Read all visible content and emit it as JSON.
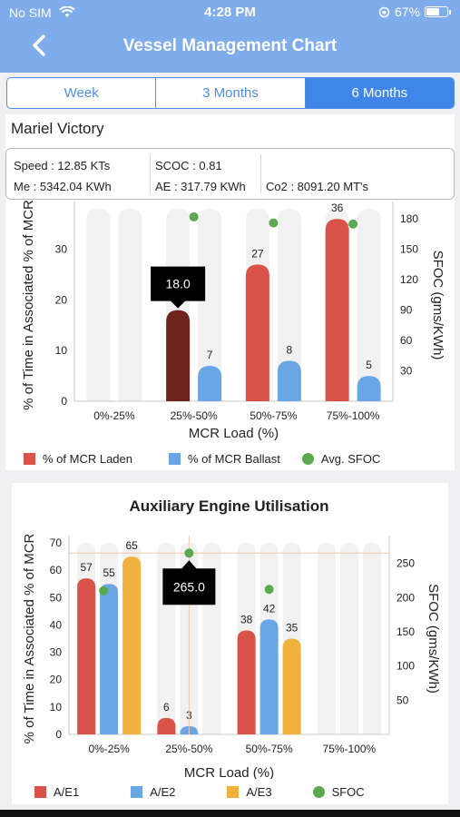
{
  "status_bar": {
    "carrier": "No SIM",
    "time": "4:28 PM",
    "battery": "67%"
  },
  "nav": {
    "title": "Vessel Management Chart"
  },
  "tabs": [
    "Week",
    "3 Months",
    "6 Months"
  ],
  "vessel": {
    "name": "Mariel Victory",
    "speed": "Speed : 12.85 KTs",
    "me": "Me : 5342.04 KWh",
    "scoc": "SCOC : 0.81",
    "ae": "AE : 317.79 KWh",
    "co2": "Co2 : 8091.20 MT's"
  },
  "colors": {
    "accent": "#3f86e8",
    "laden": "#d9534a",
    "ballast": "#6aa6e6",
    "sfoc": "#5aa94f",
    "ae3": "#f0b13e"
  },
  "chart_data": [
    {
      "type": "bar",
      "title": "",
      "categories": [
        "0%-25%",
        "25%-50%",
        "50%-75%",
        "75%-100%"
      ],
      "series": [
        {
          "name": "% of MCR Laden",
          "values": [
            0,
            18,
            27,
            36
          ],
          "labels": [
            "",
            "",
            "27",
            "36"
          ]
        },
        {
          "name": "% of MCR Ballast",
          "values": [
            0,
            7,
            8,
            5
          ],
          "labels": [
            "",
            "7",
            "8",
            "5"
          ]
        },
        {
          "name": "Avg. SFOC",
          "values": [
            null,
            182,
            176,
            175
          ],
          "axis": "right"
        }
      ],
      "highlight": {
        "category": 1,
        "series": 0,
        "tooltip": "18.0"
      },
      "xlabel": "MCR Load (%)",
      "ylabel": "% of Time in Associated % of MCR",
      "y2label": "SFOC (gms/KWh)",
      "ylim": [
        0,
        38
      ],
      "yticks": [
        0,
        10,
        20,
        30
      ],
      "y2lim": [
        0,
        190
      ],
      "y2ticks": [
        30,
        60,
        90,
        120,
        150,
        180
      ],
      "legend": "bottom"
    },
    {
      "type": "bar",
      "title": "Auxiliary Engine Utilisation",
      "categories": [
        "0%-25%",
        "25%-50%",
        "50%-75%",
        "75%-100%"
      ],
      "series": [
        {
          "name": "A/E1",
          "values": [
            57,
            6,
            38,
            0
          ],
          "labels": [
            "57",
            "6",
            "38",
            ""
          ]
        },
        {
          "name": "A/E2",
          "values": [
            55,
            3,
            42,
            0
          ],
          "labels": [
            "55",
            "3",
            "42",
            ""
          ]
        },
        {
          "name": "A/E3",
          "values": [
            65,
            0,
            35,
            0
          ],
          "labels": [
            "65",
            "",
            "35",
            ""
          ]
        },
        {
          "name": "SFOC",
          "values": [
            210,
            265,
            212,
            null
          ],
          "axis": "right"
        }
      ],
      "highlight": {
        "category": 1,
        "series": 3,
        "tooltip": "265.0"
      },
      "xlabel": "MCR Load (%)",
      "ylabel": "% of Time in Associated % of MCR",
      "y2label": "SFOC (gms/KWh)",
      "ylim": [
        0,
        70
      ],
      "yticks": [
        0,
        10,
        20,
        30,
        40,
        50,
        60,
        70
      ],
      "y2lim": [
        0,
        280
      ],
      "y2ticks": [
        50,
        100,
        150,
        200,
        250
      ],
      "legend": "bottom"
    }
  ]
}
